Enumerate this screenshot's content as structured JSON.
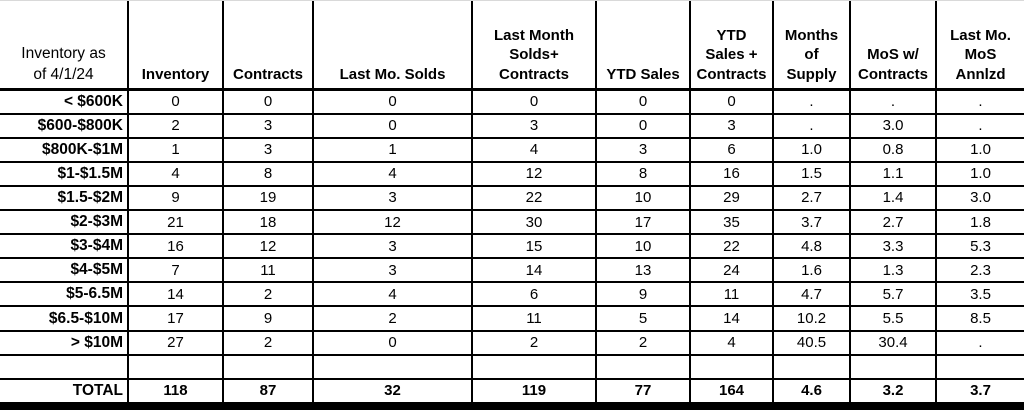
{
  "chart_data": {
    "type": "table",
    "title": "Inventory as of 4/1/24",
    "missing_value_marker": ".",
    "columns": [
      "Inventory as\nof 4/1/24",
      "Inventory",
      "Contracts",
      "Last Mo. Solds",
      "Last Month\nSolds+\nContracts",
      "YTD Sales",
      "YTD\nSales +\nContracts",
      "Months\nof\nSupply",
      "MoS w/\nContracts",
      "Last Mo.\nMoS\nAnnlzd"
    ],
    "rows": [
      {
        "label": "< $600K",
        "values": [
          "0",
          "0",
          "0",
          "0",
          "0",
          "0",
          ".",
          ".",
          "."
        ]
      },
      {
        "label": "$600-$800K",
        "values": [
          "2",
          "3",
          "0",
          "3",
          "0",
          "3",
          ".",
          "3.0",
          "."
        ]
      },
      {
        "label": "$800K-$1M",
        "values": [
          "1",
          "3",
          "1",
          "4",
          "3",
          "6",
          "1.0",
          "0.8",
          "1.0"
        ]
      },
      {
        "label": "$1-$1.5M",
        "values": [
          "4",
          "8",
          "4",
          "12",
          "8",
          "16",
          "1.5",
          "1.1",
          "1.0"
        ]
      },
      {
        "label": "$1.5-$2M",
        "values": [
          "9",
          "19",
          "3",
          "22",
          "10",
          "29",
          "2.7",
          "1.4",
          "3.0"
        ]
      },
      {
        "label": "$2-$3M",
        "values": [
          "21",
          "18",
          "12",
          "30",
          "17",
          "35",
          "3.7",
          "2.7",
          "1.8"
        ]
      },
      {
        "label": "$3-$4M",
        "values": [
          "16",
          "12",
          "3",
          "15",
          "10",
          "22",
          "4.8",
          "3.3",
          "5.3"
        ]
      },
      {
        "label": "$4-$5M",
        "values": [
          "7",
          "11",
          "3",
          "14",
          "13",
          "24",
          "1.6",
          "1.3",
          "2.3"
        ]
      },
      {
        "label": "$5-6.5M",
        "values": [
          "14",
          "2",
          "4",
          "6",
          "9",
          "11",
          "4.7",
          "5.7",
          "3.5"
        ]
      },
      {
        "label": "$6.5-$10M",
        "values": [
          "17",
          "9",
          "2",
          "11",
          "5",
          "14",
          "10.2",
          "5.5",
          "8.5"
        ]
      },
      {
        "label": "> $10M",
        "values": [
          "27",
          "2",
          "0",
          "2",
          "2",
          "4",
          "40.5",
          "30.4",
          "."
        ]
      },
      {
        "label": "",
        "values": [
          "",
          "",
          "",
          "",
          "",
          "",
          "",
          "",
          ""
        ]
      },
      {
        "label": "TOTAL",
        "values": [
          "118",
          "87",
          "32",
          "119",
          "77",
          "164",
          "4.6",
          "3.2",
          "3.7"
        ]
      }
    ]
  }
}
